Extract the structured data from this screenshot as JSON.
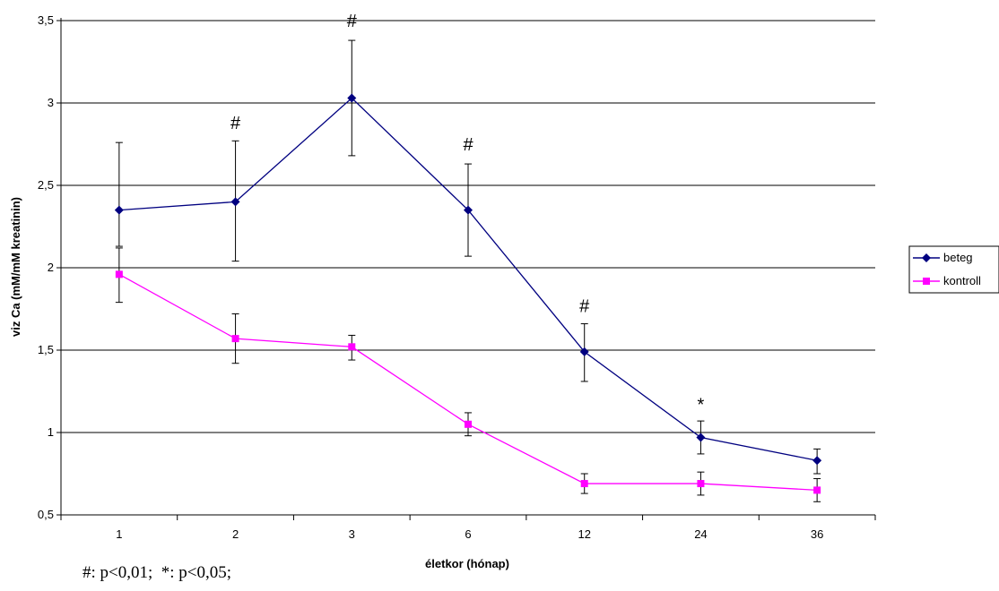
{
  "chart_data": {
    "type": "line",
    "categories": [
      "1",
      "2",
      "3",
      "6",
      "12",
      "24",
      "36"
    ],
    "ylabel": "viz Ca (mM/mM kreatinin)",
    "xlabel": "életkor (hónap)",
    "ylim": [
      0.5,
      3.5
    ],
    "y_ticks": [
      "0,5",
      "1",
      "1,5",
      "2",
      "2,5",
      "3",
      "3,5"
    ],
    "y_tick_values": [
      0.5,
      1,
      1.5,
      2,
      2.5,
      3,
      3.5
    ],
    "grid": true,
    "legend_position": "right",
    "series": [
      {
        "name": "beteg",
        "color": "#000080",
        "marker": "diamond",
        "values": [
          2.35,
          2.4,
          3.03,
          2.35,
          1.49,
          0.97,
          0.83
        ],
        "err_high": [
          2.76,
          2.77,
          3.38,
          2.63,
          1.66,
          1.07,
          0.9
        ],
        "err_low": [
          2.13,
          2.04,
          2.68,
          2.07,
          1.31,
          0.87,
          0.75
        ]
      },
      {
        "name": "kontroll",
        "color": "#ff00ff",
        "marker": "square",
        "values": [
          1.96,
          1.57,
          1.52,
          1.05,
          0.69,
          0.69,
          0.65
        ],
        "err_high": [
          2.12,
          1.72,
          1.59,
          1.12,
          0.75,
          0.76,
          0.72
        ],
        "err_low": [
          1.79,
          1.42,
          1.44,
          0.98,
          0.63,
          0.62,
          0.58
        ]
      }
    ],
    "annotations": [
      {
        "text": "#",
        "category_index": 1,
        "y": 2.88
      },
      {
        "text": "#",
        "category_index": 2,
        "y": 3.5
      },
      {
        "text": "#",
        "category_index": 3,
        "y": 2.75
      },
      {
        "text": "#",
        "category_index": 4,
        "y": 1.77
      },
      {
        "text": "*",
        "category_index": 5,
        "y": 1.17
      }
    ]
  },
  "footnote": "#: p<0,01;  *: p<0,05;"
}
